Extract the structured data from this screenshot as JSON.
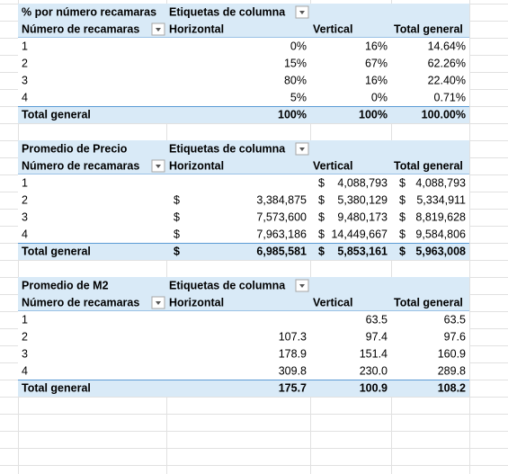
{
  "tables": [
    {
      "title": "% por número recamaras",
      "column_label": "Etiquetas de columna",
      "row_label": "Número de recamaras",
      "columns": [
        "Horizontal",
        "Vertical",
        "Total general"
      ],
      "rows": [
        {
          "label": "1",
          "cells": [
            "0%",
            "16%",
            "14.64%"
          ]
        },
        {
          "label": "2",
          "cells": [
            "15%",
            "67%",
            "62.26%"
          ]
        },
        {
          "label": "3",
          "cells": [
            "80%",
            "16%",
            "22.40%"
          ]
        },
        {
          "label": "4",
          "cells": [
            "5%",
            "0%",
            "0.71%"
          ]
        }
      ],
      "total": {
        "label": "Total general",
        "cells": [
          "100%",
          "100%",
          "100.00%"
        ]
      }
    },
    {
      "title": "Promedio de Precio",
      "column_label": "Etiquetas de columna",
      "row_label": "Número de recamaras",
      "columns": [
        "Horizontal",
        "Vertical",
        "Total general"
      ],
      "currency": "$",
      "rows": [
        {
          "label": "1",
          "cells": [
            null,
            "4,088,793",
            "4,088,793"
          ]
        },
        {
          "label": "2",
          "cells": [
            "3,384,875",
            "5,380,129",
            "5,334,911"
          ]
        },
        {
          "label": "3",
          "cells": [
            "7,573,600",
            "9,480,173",
            "8,819,628"
          ]
        },
        {
          "label": "4",
          "cells": [
            "7,963,186",
            "14,449,667",
            "9,584,806"
          ]
        }
      ],
      "total": {
        "label": "Total general",
        "cells": [
          "6,985,581",
          "5,853,161",
          "5,963,008"
        ]
      }
    },
    {
      "title": "Promedio de M2",
      "column_label": "Etiquetas de columna",
      "row_label": "Número de recamaras",
      "columns": [
        "Horizontal",
        "Vertical",
        "Total general"
      ],
      "rows": [
        {
          "label": "1",
          "cells": [
            null,
            "63.5",
            "63.5"
          ]
        },
        {
          "label": "2",
          "cells": [
            "107.3",
            "97.4",
            "97.6"
          ]
        },
        {
          "label": "3",
          "cells": [
            "178.9",
            "151.4",
            "160.9"
          ]
        },
        {
          "label": "4",
          "cells": [
            "309.8",
            "230.0",
            "289.8"
          ]
        }
      ],
      "total": {
        "label": "Total general",
        "cells": [
          "175.7",
          "100.9",
          "108.2"
        ]
      }
    }
  ]
}
